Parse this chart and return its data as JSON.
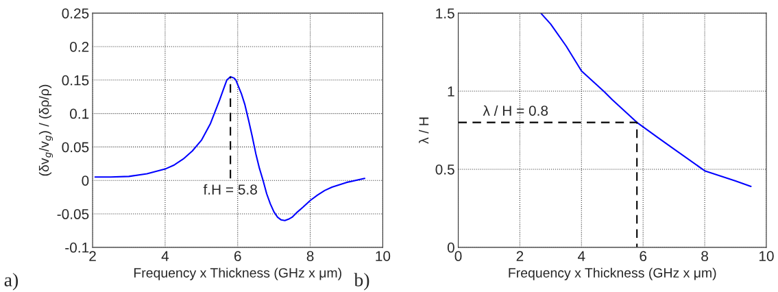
{
  "chart_data": [
    {
      "type": "line",
      "xlabel": "Frequency x Thickness (GHz x μm)",
      "ylabel": "(δv$_{g}$/v$_{g}$) / (δρ/ρ)",
      "xlim": [
        2,
        10
      ],
      "ylim": [
        -0.1,
        0.25
      ],
      "xticks": [
        2,
        4,
        6,
        8,
        10
      ],
      "yticks": [
        -0.1,
        -0.05,
        0,
        0.05,
        0.1,
        0.15,
        0.2,
        0.25
      ],
      "grid": true,
      "series": [
        {
          "color": "#0000ff",
          "line_style": "solid",
          "x": [
            2.07,
            2.5,
            3,
            3.5,
            4,
            4.25,
            4.5,
            4.75,
            5,
            5.25,
            5.5,
            5.6,
            5.7,
            5.8,
            5.9,
            5.95,
            6.1,
            6.2,
            6.3,
            6.4,
            6.5,
            6.6,
            6.7,
            6.8,
            6.9,
            7.0,
            7.1,
            7.2,
            7.3,
            7.4,
            7.5,
            7.65,
            7.8,
            8.0,
            8.2,
            8.4,
            8.6,
            9.0,
            9.5
          ],
          "values": [
            0.005,
            0.005,
            0.006,
            0.01,
            0.017,
            0.023,
            0.032,
            0.044,
            0.06,
            0.085,
            0.12,
            0.135,
            0.15,
            0.155,
            0.153,
            0.15,
            0.13,
            0.113,
            0.09,
            0.066,
            0.04,
            0.018,
            0.0,
            -0.02,
            -0.035,
            -0.047,
            -0.055,
            -0.059,
            -0.06,
            -0.058,
            -0.055,
            -0.047,
            -0.04,
            -0.03,
            -0.022,
            -0.015,
            -0.01,
            -0.003,
            0.003
          ]
        },
        {
          "color": "#000000",
          "line_style": "dashed",
          "x": [
            5.8,
            5.8
          ],
          "values": [
            0.003,
            0.155
          ]
        }
      ],
      "annotations": [
        {
          "text": "f.H = 5.8",
          "x": 5.8,
          "y": 0.003
        },
        "a)"
      ]
    },
    {
      "type": "line",
      "xlabel": "Frequency x Thickness (GHz x μm)",
      "ylabel": "λ / H",
      "xlim": [
        0,
        10
      ],
      "ylim": [
        0,
        1.5
      ],
      "xticks": [
        0,
        2,
        4,
        6,
        8,
        10
      ],
      "yticks": [
        0,
        0.5,
        1,
        1.5
      ],
      "grid": true,
      "series": [
        {
          "color": "#0000ff",
          "line_style": "solid",
          "x": [
            2.68,
            3,
            3.5,
            4,
            4.72,
            5,
            5.8,
            6.5,
            7,
            8,
            9,
            9.5
          ],
          "values": [
            1.5,
            1.43,
            1.29,
            1.13,
            1.0,
            0.945,
            0.8,
            0.7,
            0.63,
            0.49,
            0.425,
            0.39
          ]
        },
        {
          "color": "#000000",
          "line_style": "dashed",
          "x": [
            0,
            5.8,
            5.8
          ],
          "values": [
            0.8,
            0.8,
            0
          ]
        }
      ],
      "annotations": [
        {
          "text": "λ / H = 0.8",
          "x": 0.8,
          "y": 0.8
        },
        "b)"
      ]
    }
  ]
}
